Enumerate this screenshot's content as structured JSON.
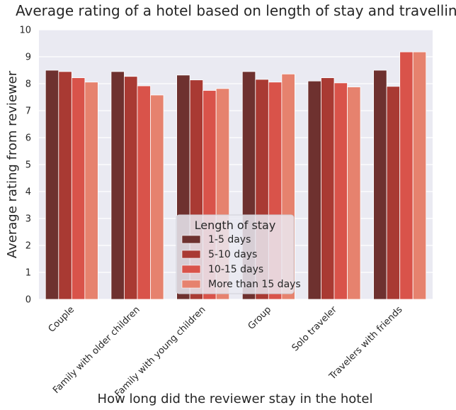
{
  "chart_data": {
    "type": "bar",
    "title": "Average rating of a hotel based on length of stay and travelling group",
    "xlabel": "How long did the reviewer stay in the hotel",
    "ylabel": "Average rating from reviewer",
    "ylim": [
      0,
      10
    ],
    "yticks": [
      "0",
      "1",
      "2",
      "3",
      "4",
      "5",
      "6",
      "7",
      "8",
      "9",
      "10"
    ],
    "grid": true,
    "categories": [
      "Couple",
      "Family with older children",
      "Family with young children",
      "Group",
      "Solo traveler",
      "Travelers with friends"
    ],
    "series": [
      {
        "name": "1-5 days",
        "color": "#6e312f",
        "values": [
          8.5,
          8.45,
          8.32,
          8.45,
          8.1,
          8.5
        ]
      },
      {
        "name": "5-10 days",
        "color": "#a93a33",
        "values": [
          8.45,
          8.27,
          8.14,
          8.16,
          8.22,
          7.9
        ]
      },
      {
        "name": "10-15 days",
        "color": "#d9534a",
        "values": [
          8.22,
          7.92,
          7.75,
          8.06,
          8.03,
          9.18
        ]
      },
      {
        "name": "More than 15 days",
        "color": "#e6826e",
        "values": [
          8.06,
          7.58,
          7.82,
          8.36,
          7.88,
          9.18
        ]
      }
    ],
    "legend": {
      "title": "Length of stay",
      "placement": "lower-center"
    },
    "background": "#eaeaf2"
  }
}
